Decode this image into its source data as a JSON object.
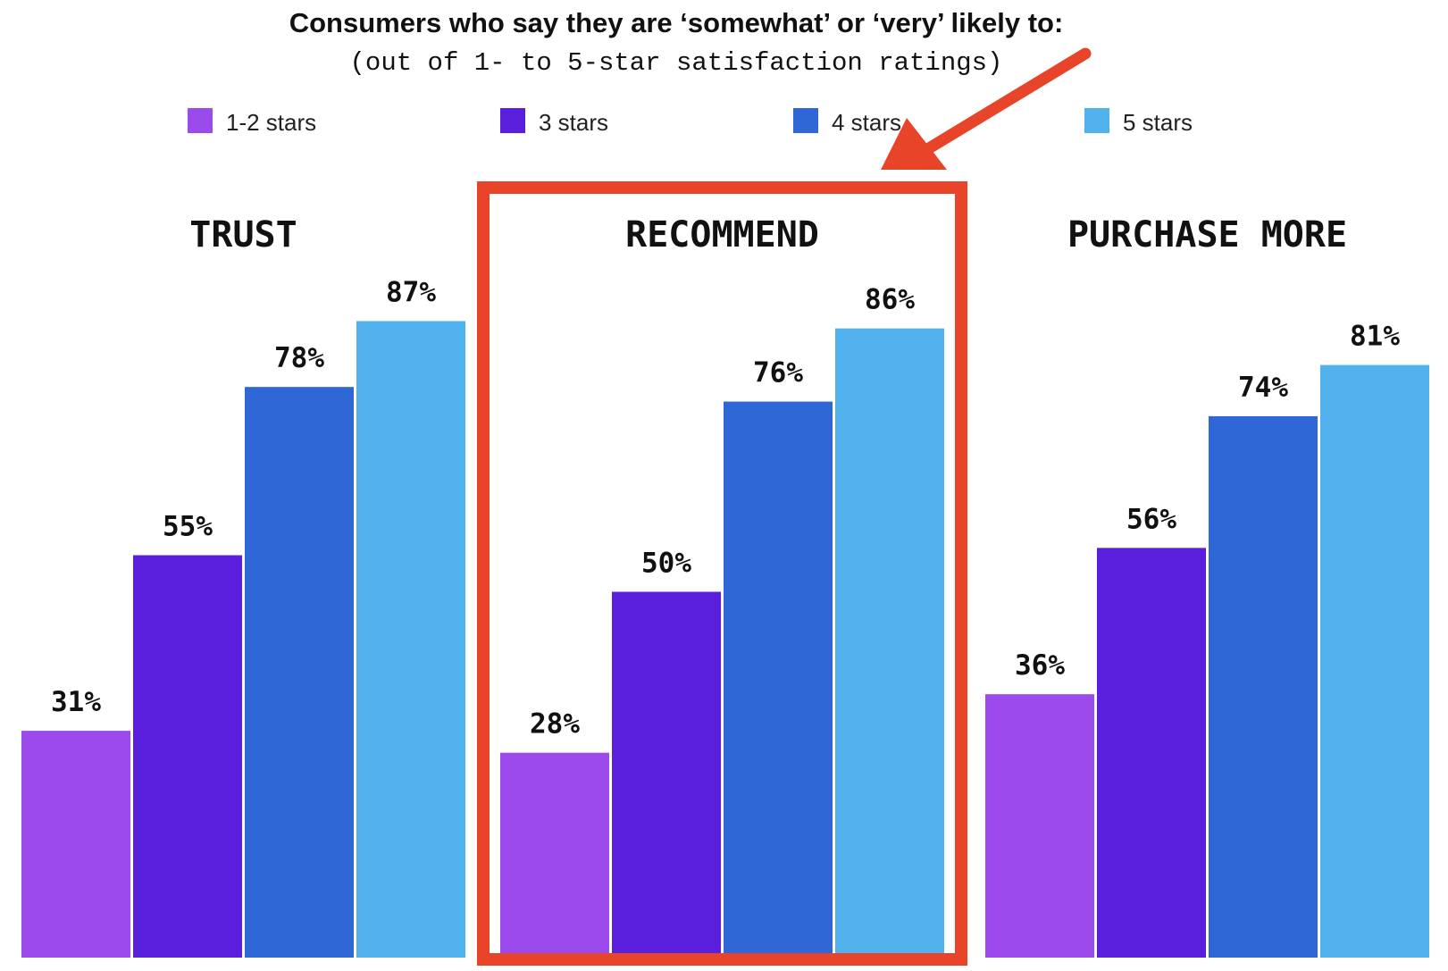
{
  "chart_data": {
    "type": "bar",
    "title": "Consumers who say they are ‘somewhat’ or ‘very’ likely to:",
    "subtitle": "(out of 1- to 5-star satisfaction ratings)",
    "categories": [
      "TRUST",
      "RECOMMEND",
      "PURCHASE MORE"
    ],
    "series": [
      {
        "name": "1-2 stars",
        "color": "#9b4bec",
        "values": [
          31,
          28,
          36
        ],
        "labels": [
          "31%",
          "28%",
          "36%"
        ]
      },
      {
        "name": "3 stars",
        "color": "#5a1fdd",
        "values": [
          55,
          50,
          56
        ],
        "labels": [
          "55%",
          "50%",
          "56%"
        ]
      },
      {
        "name": "4 stars",
        "color": "#2f67d6",
        "values": [
          78,
          76,
          74
        ],
        "labels": [
          "78%",
          "76%",
          "74%"
        ]
      },
      {
        "name": "5 stars",
        "color": "#51b1ec",
        "values": [
          87,
          86,
          81
        ],
        "labels": [
          "87%",
          "86%",
          "81%"
        ]
      }
    ],
    "ylim": [
      0,
      100
    ],
    "grid": false,
    "legend_position": "top",
    "highlighted_category": "RECOMMEND",
    "highlight_color": "#e8442a"
  }
}
